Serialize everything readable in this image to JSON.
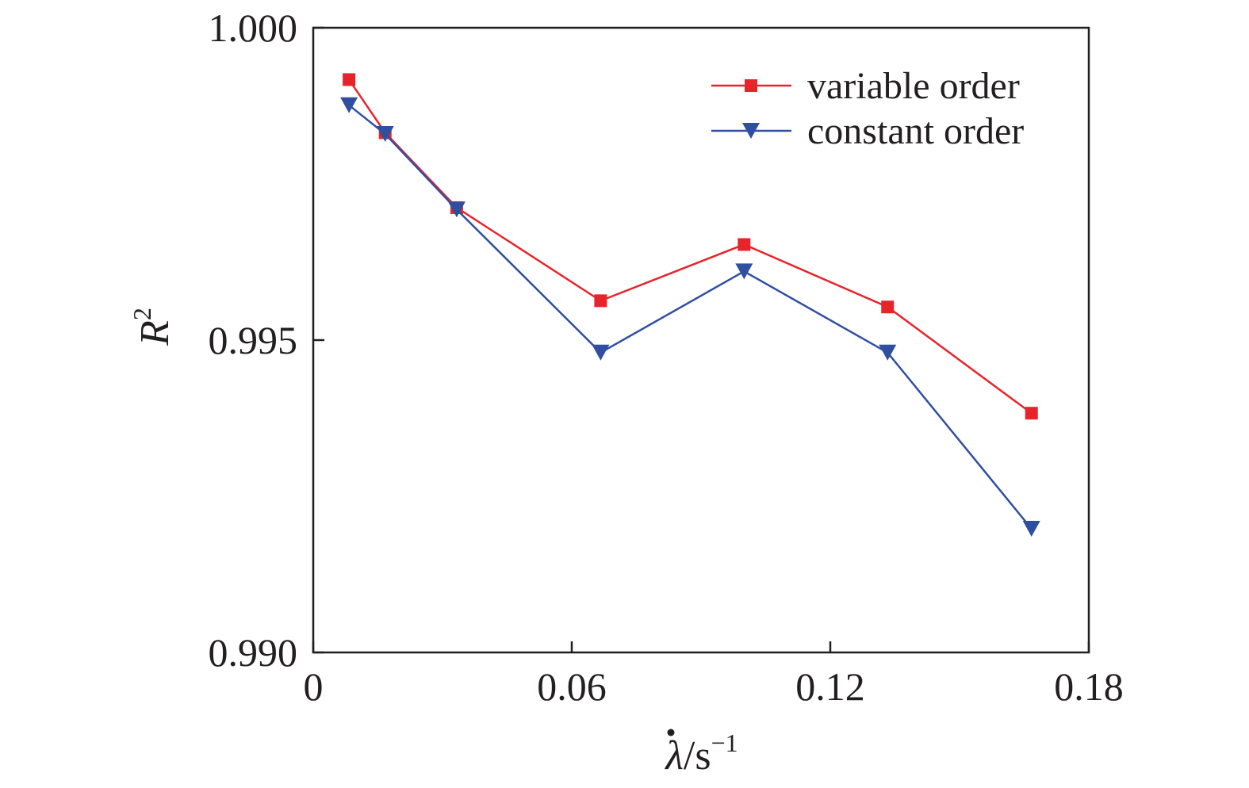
{
  "chart_data": {
    "type": "line",
    "title": "",
    "xlabel": "λ̇/s⁻¹",
    "xlabel_parts": {
      "symbol": "λ",
      "unit": "/s",
      "exponent": "−1"
    },
    "ylabel": "R²",
    "ylabel_parts": {
      "symbol": "R",
      "exponent": "2"
    },
    "xlim": [
      0,
      0.18
    ],
    "ylim": [
      0.99,
      1.0
    ],
    "xticks": [
      0,
      0.06,
      0.12,
      0.18
    ],
    "xtick_labels": [
      "0",
      "0.06",
      "0.12",
      "0.18"
    ],
    "yticks": [
      0.99,
      0.995,
      1.0
    ],
    "ytick_labels": [
      "0.990",
      "0.995",
      "1.000"
    ],
    "grid": false,
    "legend_position": "top-right",
    "series": [
      {
        "name": "variable order",
        "color": "#e8242b",
        "marker": "square",
        "x": [
          0.0083,
          0.0167,
          0.0333,
          0.0667,
          0.1,
          0.1333,
          0.1667
        ],
        "y": [
          0.99917,
          0.99832,
          0.99712,
          0.99563,
          0.99653,
          0.99553,
          0.99383
        ]
      },
      {
        "name": "constant order",
        "color": "#2f4fa1",
        "marker": "triangle-down",
        "x": [
          0.0083,
          0.0167,
          0.0333,
          0.0667,
          0.1,
          0.1333,
          0.1667
        ],
        "y": [
          0.99876,
          0.9983,
          0.99709,
          0.9948,
          0.9961,
          0.9948,
          0.99198
        ]
      }
    ]
  }
}
